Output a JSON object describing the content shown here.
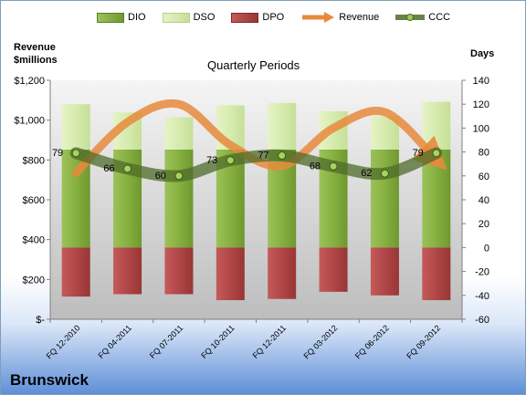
{
  "chart_data": {
    "type": "bar",
    "title": "Quarterly Periods",
    "company": "Brunswick",
    "left_axis_title": [
      "Revenue",
      "$millions"
    ],
    "right_axis_title": "Days",
    "categories": [
      "FQ 12-2010",
      "FQ 04-2011",
      "FQ 07-2011",
      "FQ 10-2011",
      "FQ 12-2011",
      "FQ 03-2012",
      "FQ 06-2012",
      "FQ 09-2012"
    ],
    "left_axis": {
      "ylim": [
        0,
        1200
      ],
      "ticks": [
        0,
        200,
        400,
        600,
        800,
        1000,
        1200
      ],
      "tick_labels": [
        "$-",
        "$200",
        "$400",
        "$600",
        "$800",
        "$1,000",
        "$1,200"
      ]
    },
    "right_axis": {
      "ylim": [
        -60,
        140
      ],
      "ticks": [
        -60,
        -40,
        -20,
        0,
        20,
        40,
        60,
        80,
        100,
        120,
        140
      ],
      "tick_labels": [
        "-60",
        "-40",
        "-20",
        "0",
        "20",
        "40",
        "60",
        "80",
        "100",
        "120",
        "140"
      ]
    },
    "legend": {
      "placement": "top",
      "entries": [
        "DIO",
        "DSO",
        "DPO",
        "Revenue",
        "CCC"
      ]
    },
    "grid": false,
    "series": [
      {
        "name": "DIO",
        "axis": "right",
        "kind": "stacked-bar",
        "values": [
          82,
          82,
          82,
          82,
          82,
          82,
          82,
          82
        ],
        "color": "#7fa83a"
      },
      {
        "name": "DSO",
        "axis": "right",
        "kind": "stacked-bar",
        "values": [
          38,
          31,
          27,
          37,
          39,
          32,
          28,
          40
        ],
        "color": "#d9ecb0"
      },
      {
        "name": "DPO",
        "axis": "right",
        "kind": "negative-bar",
        "values": [
          -41,
          -39,
          -39,
          -44,
          -43,
          -37,
          -40,
          -44
        ],
        "color": "#b54a4a"
      },
      {
        "name": "Revenue",
        "axis": "left",
        "kind": "smooth-line",
        "values": [
          735,
          990,
          1080,
          875,
          770,
          960,
          1040,
          800
        ],
        "color": "#e88a3c"
      },
      {
        "name": "CCC",
        "axis": "right",
        "kind": "smooth-line",
        "values": [
          79,
          66,
          60,
          73,
          77,
          68,
          62,
          79
        ],
        "labels": [
          "79",
          "66",
          "60",
          "73",
          "77",
          "68",
          "62",
          "79"
        ],
        "color": "#4f6b2a"
      }
    ]
  }
}
